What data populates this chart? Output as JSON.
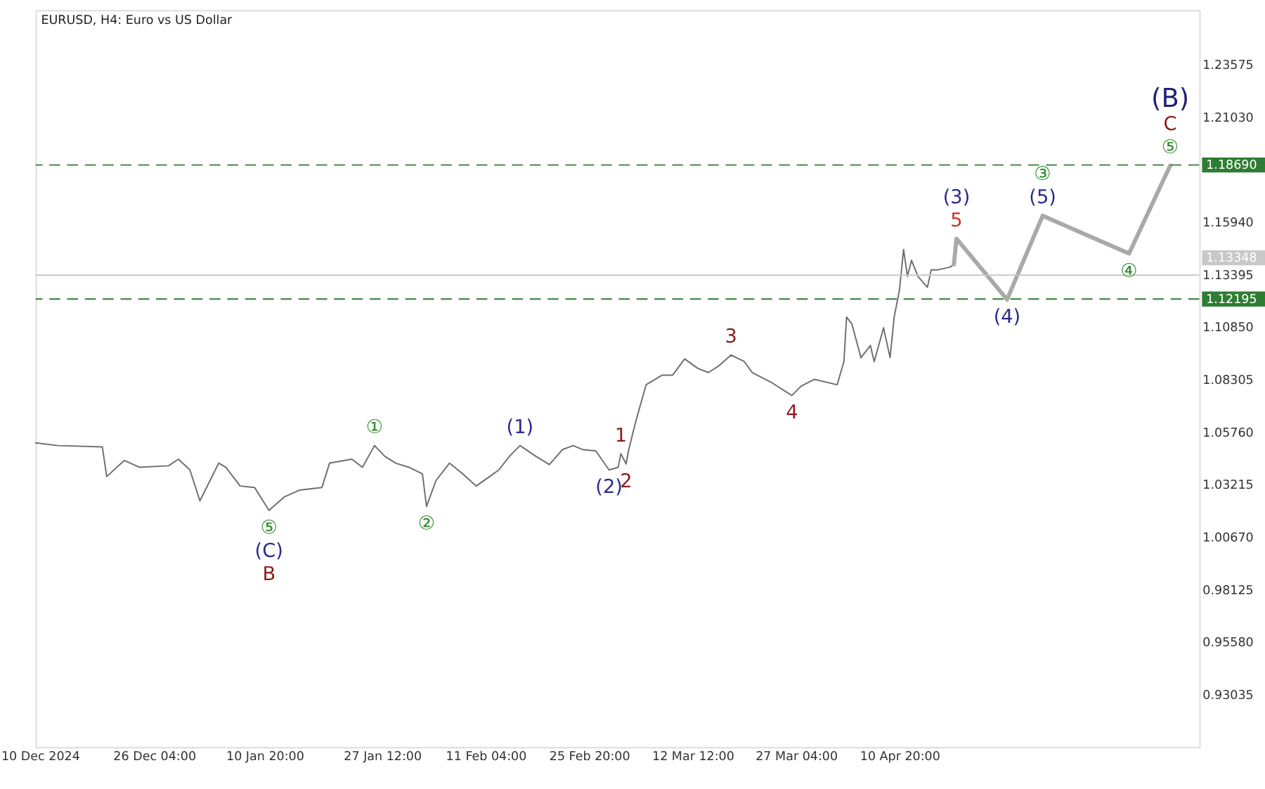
{
  "chart_data": {
    "type": "line",
    "title": "EURUSD, H4:  Euro vs US Dollar",
    "xlim": [
      "2024-12-09T09:00",
      "2025-05-23T08:00"
    ],
    "ylim": [
      0.9048,
      1.262
    ],
    "xticks": [
      {
        "value": "2024-12-10T00:00",
        "label": "10 Dec 2024"
      },
      {
        "value": "2024-12-26T04:00",
        "label": "26 Dec 04:00"
      },
      {
        "value": "2025-01-10T20:00",
        "label": "10 Jan 20:00"
      },
      {
        "value": "2025-01-27T12:00",
        "label": "27 Jan 12:00"
      },
      {
        "value": "2025-02-11T04:00",
        "label": "11 Feb 04:00"
      },
      {
        "value": "2025-02-25T20:00",
        "label": "25 Feb 20:00"
      },
      {
        "value": "2025-03-12T12:00",
        "label": "12 Mar 12:00"
      },
      {
        "value": "2025-03-27T04:00",
        "label": "27 Mar 04:00"
      },
      {
        "value": "2025-04-10T20:00",
        "label": "10 Apr 20:00"
      }
    ],
    "yticks": [
      {
        "value": 1.23575,
        "label": "1.23575"
      },
      {
        "value": 1.2103,
        "label": "1.21030"
      },
      {
        "value": 1.1594,
        "label": "1.15940"
      },
      {
        "value": 1.13395,
        "label": "1.13395"
      },
      {
        "value": 1.1085,
        "label": "1.10850"
      },
      {
        "value": 1.08305,
        "label": "1.08305"
      },
      {
        "value": 1.0576,
        "label": "1.05760"
      },
      {
        "value": 1.03215,
        "label": "1.03215"
      },
      {
        "value": 1.0067,
        "label": "1.00670"
      },
      {
        "value": 0.98125,
        "label": "0.98125"
      },
      {
        "value": 0.9558,
        "label": "0.95580"
      },
      {
        "value": 0.93035,
        "label": "0.93035"
      }
    ],
    "grid": false,
    "marker": "none",
    "series": [
      {
        "color": "#6e6e6e",
        "x": [
          "2024-12-09T09:00",
          "2024-12-12T12:00",
          "2024-12-18T20:00",
          "2024-12-19T11:00",
          "2024-12-21T23:00",
          "2024-12-24T02:00",
          "2024-12-28T05:00",
          "2024-12-29T15:00",
          "2024-12-31T06:00",
          "2025-01-01T16:00",
          "2025-01-04T08:00",
          "2025-01-05T08:00",
          "2025-01-07T09:00",
          "2025-01-09T10:00",
          "2025-01-11T11:00",
          "2025-01-13T15:00",
          "2025-01-15T18:00",
          "2025-01-18T23:00",
          "2025-01-20T01:00",
          "2025-01-23T05:00",
          "2025-01-24T17:00",
          "2025-01-26T10:00",
          "2025-01-27T21:00",
          "2025-01-29T10:00",
          "2025-01-31T07:00",
          "2025-02-02T05:00",
          "2025-02-02T19:00",
          "2025-02-04T03:00",
          "2025-02-06T01:00",
          "2025-02-07T22:00",
          "2025-02-09T20:00",
          "2025-02-11T18:00",
          "2025-02-13T01:00",
          "2025-02-14T13:00",
          "2025-02-16T01:00",
          "2025-02-18T07:00",
          "2025-02-20T05:00",
          "2025-02-22T02:00",
          "2025-02-23T14:00",
          "2025-02-24T21:00",
          "2025-02-26T19:00",
          "2025-02-28T16:00",
          "2025-03-01T23:00",
          "2025-03-02T08:00",
          "2025-03-03T02:00",
          "2025-03-03T11:00",
          "2025-03-04T10:00",
          "2025-03-05T22:00",
          "2025-03-08T04:00",
          "2025-03-09T16:00",
          "2025-03-11T09:00",
          "2025-03-13T06:00",
          "2025-03-14T18:00",
          "2025-03-16T06:00",
          "2025-03-17T23:00",
          "2025-03-19T20:00",
          "2025-03-20T23:00",
          "2025-03-23T14:00",
          "2025-03-26T14:00",
          "2025-03-27T22:00",
          "2025-03-29T19:00",
          "2025-04-02T00:00",
          "2025-04-02T23:00",
          "2025-04-03T08:00",
          "2025-04-04T02:00",
          "2025-04-05T09:00",
          "2025-04-06T17:00",
          "2025-04-07T06:00",
          "2025-04-08T14:00",
          "2025-04-09T12:00",
          "2025-04-10T02:00",
          "2025-04-10T20:00",
          "2025-04-11T10:00",
          "2025-04-11T23:00",
          "2025-04-12T13:00",
          "2025-04-13T11:00",
          "2025-04-14T19:00",
          "2025-04-15T08:00",
          "2025-04-16T07:00",
          "2025-04-18T00:00",
          "2025-04-18T13:00"
        ],
        "values": [
          1.0522,
          1.0509,
          1.0503,
          1.0359,
          1.0437,
          1.0404,
          1.0411,
          1.0443,
          1.0391,
          1.0241,
          1.0424,
          1.0404,
          1.0313,
          1.0306,
          1.0195,
          1.026,
          1.0293,
          1.0306,
          1.0424,
          1.0443,
          1.0404,
          1.0509,
          1.0457,
          1.0424,
          1.0404,
          1.0372,
          1.0214,
          1.0339,
          1.0424,
          1.0372,
          1.0313,
          1.0359,
          1.0391,
          1.0457,
          1.0509,
          1.0457,
          1.0417,
          1.049,
          1.0509,
          1.049,
          1.0483,
          1.0391,
          1.0404,
          1.047,
          1.042,
          1.049,
          1.0621,
          1.0804,
          1.085,
          1.085,
          1.0929,
          1.0883,
          1.0863,
          1.0896,
          1.0948,
          1.0916,
          1.0863,
          1.0817,
          1.0752,
          1.0798,
          1.083,
          1.0804,
          1.0916,
          1.1132,
          1.1099,
          1.0935,
          1.0994,
          1.0916,
          1.108,
          1.0935,
          1.1132,
          1.1263,
          1.146,
          1.1329,
          1.1407,
          1.1329,
          1.1276,
          1.1361,
          1.1361,
          1.1374,
          1.1387
        ]
      },
      {
        "color": "#a9a9a9",
        "x": [
          "2025-04-18T13:00",
          "2025-04-18T22:00",
          "2025-04-26T02:00",
          "2025-05-01T03:00",
          "2025-05-13T09:00",
          "2025-05-19T05:00"
        ],
        "values": [
          1.1387,
          1.1512,
          1.1217,
          1.1623,
          1.144,
          1.1866
        ]
      }
    ],
    "ref_lines": [
      {
        "axis": "y",
        "value": 1.1869,
        "label": "1.18690",
        "color": "#2e7d32",
        "line_style": "dashed"
      },
      {
        "axis": "y",
        "value": 1.13348,
        "label": "1.13348",
        "color": "#c8c8c8",
        "line_style": "solid"
      },
      {
        "axis": "y",
        "value": 1.12195,
        "label": "1.12195",
        "color": "#2e7d32",
        "line_style": "dashed"
      }
    ],
    "annotations": [
      {
        "text": "⑤",
        "x": "2025-01-11T11:00",
        "y": 1.0195
      },
      {
        "text": "(C)",
        "x": "2025-01-11T11:00",
        "y": 1.0195
      },
      {
        "text": "B",
        "x": "2025-01-11T11:00",
        "y": 1.0195
      },
      {
        "text": "①",
        "x": "2025-01-26T10:00",
        "y": 1.0509
      },
      {
        "text": "②",
        "x": "2025-02-02T19:00",
        "y": 1.0214
      },
      {
        "text": "(1)",
        "x": "2025-02-16T01:00",
        "y": 1.0509
      },
      {
        "text": "(2)",
        "x": "2025-02-28T16:00",
        "y": 1.0391
      },
      {
        "text": "1",
        "x": "2025-03-02T08:00",
        "y": 1.047
      },
      {
        "text": "2",
        "x": "2025-03-03T02:00",
        "y": 1.042
      },
      {
        "text": "3",
        "x": "2025-03-17T23:00",
        "y": 1.0948
      },
      {
        "text": "4",
        "x": "2025-03-26T14:00",
        "y": 1.0752
      },
      {
        "text": "5",
        "x": "2025-04-18T22:00",
        "y": 1.1512
      },
      {
        "text": "(3)",
        "x": "2025-04-18T22:00",
        "y": 1.1512
      },
      {
        "text": "(4)",
        "x": "2025-04-26T02:00",
        "y": 1.1217
      },
      {
        "text": "(5)",
        "x": "2025-05-01T03:00",
        "y": 1.1623
      },
      {
        "text": "③",
        "x": "2025-05-01T03:00",
        "y": 1.1623
      },
      {
        "text": "④",
        "x": "2025-05-13T09:00",
        "y": 1.144
      },
      {
        "text": "⑤",
        "x": "2025-05-19T05:00",
        "y": 1.1866
      },
      {
        "text": "C",
        "x": "2025-05-19T05:00",
        "y": 1.1866
      },
      {
        "text": "(B)",
        "x": "2025-05-19T05:00",
        "y": 1.1866
      }
    ]
  }
}
